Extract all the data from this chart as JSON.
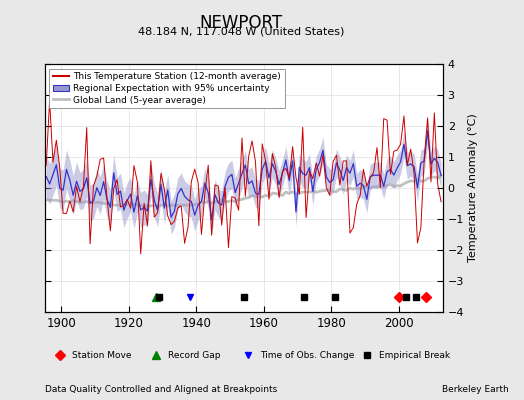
{
  "title": "NEWPORT",
  "subtitle": "48.184 N, 117.048 W (United States)",
  "xlabel_bottom": "Data Quality Controlled and Aligned at Breakpoints",
  "xlabel_right": "Berkeley Earth",
  "ylabel_right": "Temperature Anomaly (°C)",
  "xlim": [
    1895,
    2013
  ],
  "ylim": [
    -4,
    4
  ],
  "yticks": [
    -4,
    -3,
    -2,
    -1,
    0,
    1,
    2,
    3,
    4
  ],
  "xticks": [
    1900,
    1920,
    1940,
    1960,
    1980,
    2000
  ],
  "bg_color": "#e8e8e8",
  "plot_bg_color": "#ffffff",
  "station_line_color": "#cc0000",
  "regional_line_color": "#3333cc",
  "regional_fill_color": "#9999cc",
  "global_line_color": "#c0c0c0",
  "legend_entries": [
    "This Temperature Station (12-month average)",
    "Regional Expectation with 95% uncertainty",
    "Global Land (5-year average)"
  ],
  "marker_events": {
    "station_move_years": [
      2000,
      2008
    ],
    "record_gap_years": [
      1928
    ],
    "time_obs_change_years": [
      1938
    ],
    "empirical_break_years": [
      1929,
      1954,
      1972,
      1981,
      2002,
      2005
    ]
  },
  "seed": 42
}
